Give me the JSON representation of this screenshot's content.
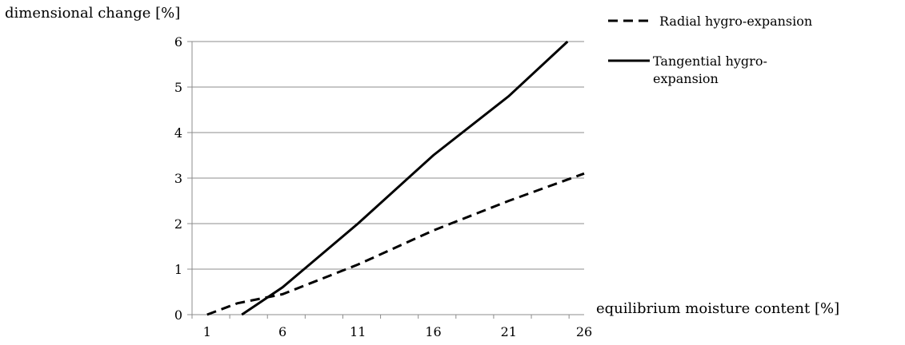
{
  "chart_data": {
    "type": "line",
    "title": "",
    "xlabel": "equilibrium moisture content [%]",
    "ylabel": "dimensional change [%]",
    "xlim": [
      0,
      26
    ],
    "ylim": [
      0,
      6
    ],
    "xticks": [
      1,
      6,
      11,
      16,
      21,
      26
    ],
    "yticks": [
      0,
      1,
      2,
      3,
      4,
      5,
      6
    ],
    "grid": "horizontal",
    "legend_position": "right",
    "series": [
      {
        "name": "Radial hygro-expansion",
        "style": "dashed",
        "color": "#000000",
        "x": [
          1,
          3,
          6,
          11,
          16,
          21,
          26
        ],
        "y": [
          0,
          0.25,
          0.45,
          1.1,
          1.85,
          2.5,
          3.1
        ]
      },
      {
        "name": "Tangential hygro-expansion",
        "legend_lines": [
          "Tangential hygro-",
          "expansion"
        ],
        "style": "solid",
        "color": "#000000",
        "x": [
          3.3,
          6,
          11,
          16,
          21,
          24.9
        ],
        "y": [
          0,
          0.6,
          2,
          3.5,
          4.8,
          6
        ]
      }
    ]
  }
}
